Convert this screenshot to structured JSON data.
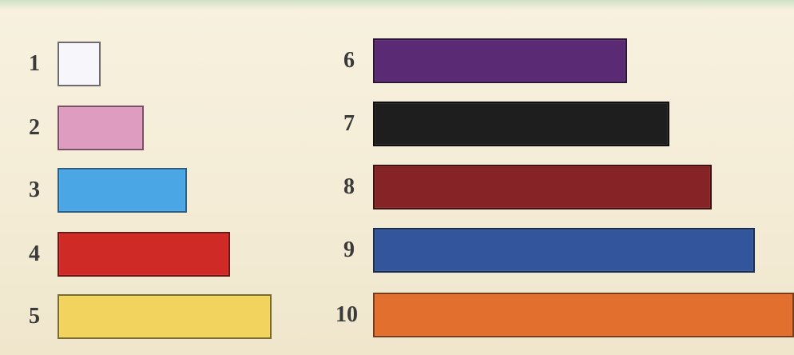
{
  "rods": [
    {
      "label": "1",
      "units": 1,
      "color": "#f7f6fb",
      "border": "#6e6a70"
    },
    {
      "label": "2",
      "units": 2,
      "color": "#de9dc0",
      "border": "#7a5164"
    },
    {
      "label": "3",
      "units": 3,
      "color": "#4aa6e4",
      "border": "#2d5f84"
    },
    {
      "label": "4",
      "units": 4,
      "color": "#cf2a25",
      "border": "#6b1714"
    },
    {
      "label": "5",
      "units": 5,
      "color": "#f2d35e",
      "border": "#7a6b2f"
    },
    {
      "label": "6",
      "units": 6,
      "color": "#5b2a74",
      "border": "#2d1538"
    },
    {
      "label": "7",
      "units": 7,
      "color": "#1e1e1f",
      "border": "#0e0e0f"
    },
    {
      "label": "8",
      "units": 8,
      "color": "#852327",
      "border": "#3f1113"
    },
    {
      "label": "9",
      "units": 9,
      "color": "#32559c",
      "border": "#1a2e54"
    },
    {
      "label": "10",
      "units": 10,
      "color": "#e26f2e",
      "border": "#7a3b17"
    }
  ]
}
